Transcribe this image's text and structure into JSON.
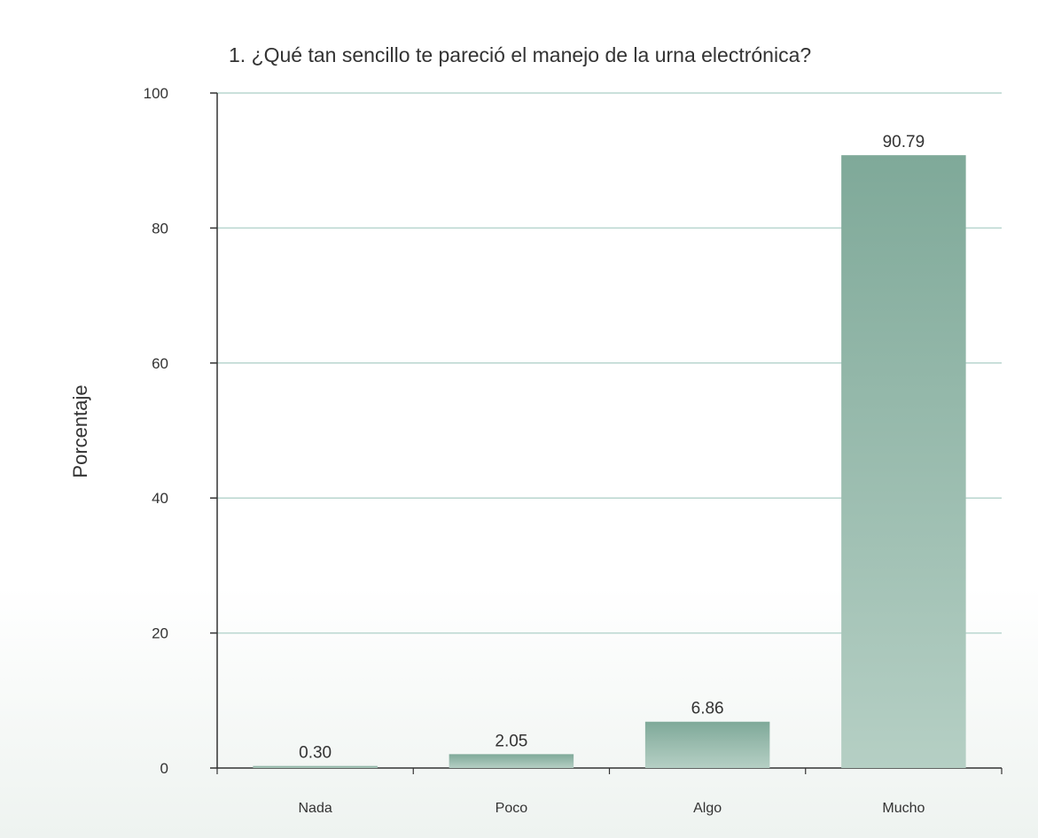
{
  "chart_data": {
    "type": "bar",
    "title": "1. ¿Qué tan sencillo te pareció el manejo de la urna electrónica?",
    "xlabel": "",
    "ylabel": "Porcentaje",
    "categories": [
      "Nada",
      "Poco",
      "Algo",
      "Mucho"
    ],
    "values": [
      0.3,
      2.05,
      6.86,
      90.79
    ],
    "value_labels": [
      "0.30",
      "2.05",
      "6.86",
      "90.79"
    ],
    "ylim": [
      0,
      100
    ],
    "yticks": [
      0,
      20,
      40,
      60,
      80,
      100
    ],
    "ytick_labels": [
      "0",
      "20",
      "40",
      "60",
      "80",
      "100"
    ],
    "grid": true,
    "colors": {
      "bar": "#7fa999",
      "bar_light": "#b5cfc4",
      "grid": "#b9d6cf",
      "axis": "#333333"
    }
  }
}
